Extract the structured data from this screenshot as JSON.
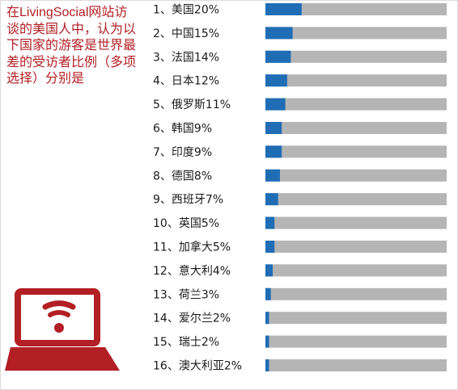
{
  "description_text": "在LivingSocial网站访谈的美国人中，认为以下国家的游客是世界最差的受访者比例（多项选择）分别是",
  "colors": {
    "accent_text": "#b21f24",
    "bar_fill": "#1f6db5",
    "bar_track": "#b5b5b5",
    "laptop_icon": "#b21f24"
  },
  "icon": "laptop-wifi-icon",
  "chart_data": {
    "type": "bar",
    "orientation": "horizontal",
    "xlim": [
      0,
      100
    ],
    "items": [
      {
        "label": "1、美国20%",
        "value": 20
      },
      {
        "label": "2、中国15%",
        "value": 15
      },
      {
        "label": "3、法国14%",
        "value": 14
      },
      {
        "label": "4、日本12%",
        "value": 12
      },
      {
        "label": "5、俄罗斯11%",
        "value": 11
      },
      {
        "label": "6、韩国9%",
        "value": 9
      },
      {
        "label": "7、印度9%",
        "value": 9
      },
      {
        "label": "8、德国8%",
        "value": 8
      },
      {
        "label": "9、西班牙7%",
        "value": 7
      },
      {
        "label": "10、英国5%",
        "value": 5
      },
      {
        "label": "11、加拿大5%",
        "value": 5
      },
      {
        "label": "12、意大利4%",
        "value": 4
      },
      {
        "label": "13、荷兰3%",
        "value": 3
      },
      {
        "label": "14、爱尔兰2%",
        "value": 2
      },
      {
        "label": "15、瑞士2%",
        "value": 2
      },
      {
        "label": "16、澳大利亚2%",
        "value": 2
      }
    ]
  }
}
